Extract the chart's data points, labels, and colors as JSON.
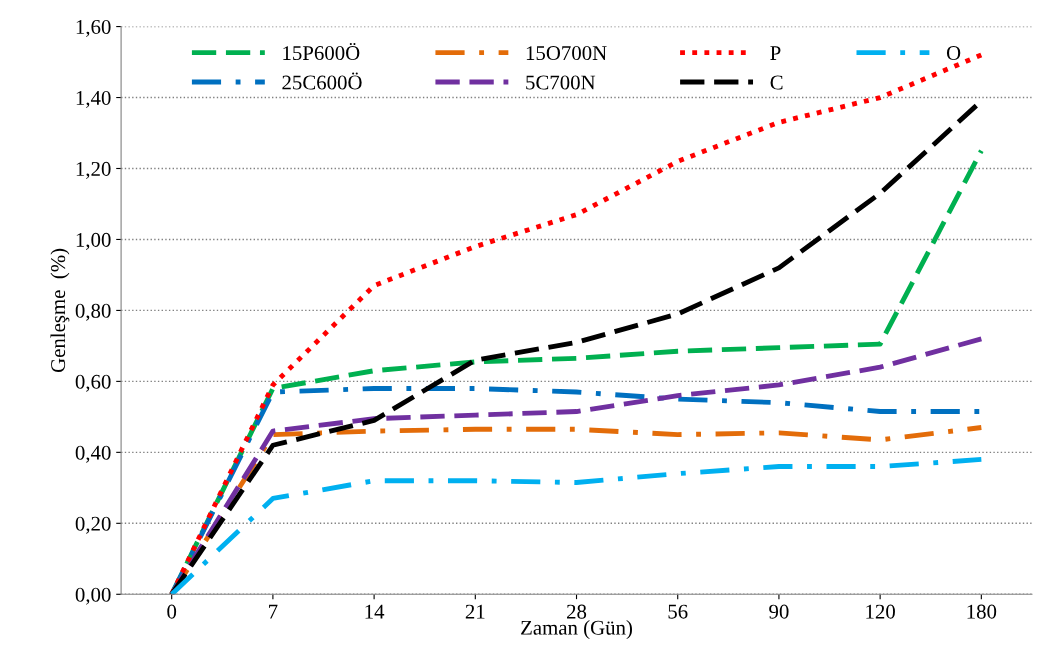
{
  "chart_data": {
    "type": "line",
    "xlabel": "Zaman (Gün)",
    "ylabel": "Genleşme  (%)",
    "categories": [
      "0",
      "7",
      "14",
      "21",
      "28",
      "56",
      "90",
      "120",
      "180"
    ],
    "ylim": [
      0,
      1.6
    ],
    "yticks": [
      {
        "value": 0,
        "label": "0,00"
      },
      {
        "value": 0.2,
        "label": "0,20"
      },
      {
        "value": 0.4,
        "label": "0,40"
      },
      {
        "value": 0.6,
        "label": "0,60"
      },
      {
        "value": 0.8,
        "label": "0,80"
      },
      {
        "value": 1.0,
        "label": "1,00"
      },
      {
        "value": 1.2,
        "label": "1,20"
      },
      {
        "value": 1.4,
        "label": "1,40"
      },
      {
        "value": 1.6,
        "label": "1,60"
      }
    ],
    "grid": "y",
    "legend": "top",
    "marker": "none",
    "series": [
      {
        "name": "15P600Ö",
        "color": "#00b050",
        "line_style": "dashed",
        "values": [
          0,
          0.58,
          0.63,
          0.655,
          0.665,
          0.685,
          0.695,
          0.705,
          1.25
        ]
      },
      {
        "name": "25C600Ö",
        "color": "#0070c0",
        "line_style": "dashdot",
        "values": [
          0,
          0.57,
          0.58,
          0.58,
          0.57,
          0.55,
          0.54,
          0.515,
          0.515
        ]
      },
      {
        "name": "15O700N",
        "color": "#e36c09",
        "line_style": "dashdot",
        "values": [
          0,
          0.45,
          0.46,
          0.465,
          0.465,
          0.45,
          0.455,
          0.435,
          0.47
        ]
      },
      {
        "name": "5C700N",
        "color": "#7030a0",
        "line_style": "dashed",
        "values": [
          0,
          0.46,
          0.495,
          0.505,
          0.515,
          0.56,
          0.59,
          0.64,
          0.72
        ]
      },
      {
        "name": "P",
        "color": "#ff0000",
        "line_style": "dotted",
        "values": [
          0,
          0.59,
          0.87,
          0.98,
          1.07,
          1.22,
          1.33,
          1.4,
          1.52
        ]
      },
      {
        "name": "C",
        "color": "#000000",
        "line_style": "dashed",
        "values": [
          0,
          0.42,
          0.49,
          0.66,
          0.71,
          0.79,
          0.92,
          1.13,
          1.39
        ]
      },
      {
        "name": "O",
        "color": "#00b0f0",
        "line_style": "dashdot",
        "values": [
          0,
          0.27,
          0.32,
          0.32,
          0.315,
          0.34,
          0.36,
          0.36,
          0.38
        ]
      }
    ]
  }
}
